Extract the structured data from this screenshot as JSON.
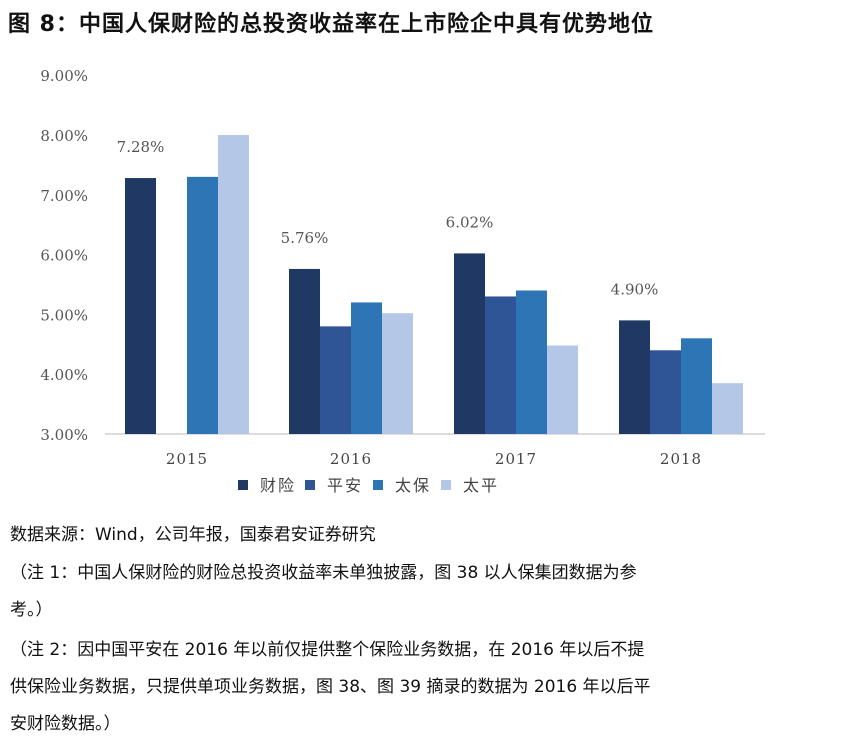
{
  "title": "图 8：中国人保财险的总投资收益率在上市险企中具有优势地位",
  "chart_data": {
    "type": "bar",
    "title": "中国人保财险的总投资收益率在上市险企中具有优势地位",
    "xlabel": "",
    "ylabel": "",
    "categories": [
      "2015",
      "2016",
      "2017",
      "2018"
    ],
    "series": [
      {
        "name": "财险",
        "color": "#1F3864",
        "values": [
          7.28,
          5.76,
          6.02,
          4.9
        ]
      },
      {
        "name": "平安",
        "color": "#2F5597",
        "values": [
          null,
          4.8,
          5.3,
          4.4
        ]
      },
      {
        "name": "太保",
        "color": "#2E75B6",
        "values": [
          7.3,
          5.2,
          5.4,
          4.6
        ]
      },
      {
        "name": "太平",
        "color": "#B4C7E7",
        "values": [
          8.0,
          5.02,
          4.48,
          3.85
        ]
      }
    ],
    "data_labels": [
      {
        "category": "2015",
        "series": "财险",
        "text": "7.28%"
      },
      {
        "category": "2016",
        "series": "财险",
        "text": "5.76%"
      },
      {
        "category": "2017",
        "series": "财险",
        "text": "6.02%"
      },
      {
        "category": "2018",
        "series": "财险",
        "text": "4.90%"
      }
    ],
    "ylim": [
      3.0,
      9.0
    ],
    "yticks": [
      "3.00%",
      "4.00%",
      "5.00%",
      "6.00%",
      "7.00%",
      "8.00%",
      "9.00%"
    ],
    "grid": false,
    "legend_position": "bottom"
  },
  "source": "数据来源：Wind，公司年报，国泰君安证券研究",
  "notes": {
    "note1_lines": [
      "（注 1：中国人保财险的财险总投资收益率未单独披露，图 38 以人保集团数据为参",
      "考。）"
    ],
    "note2_lines": [
      "（注 2：因中国平安在 2016 年以前仅提供整个保险业务数据，在 2016 年以后不提",
      "供保险业务数据，只提供单项业务数据，图 38、图 39 摘录的数据为 2016 年以后平",
      "安财险数据。）"
    ]
  }
}
